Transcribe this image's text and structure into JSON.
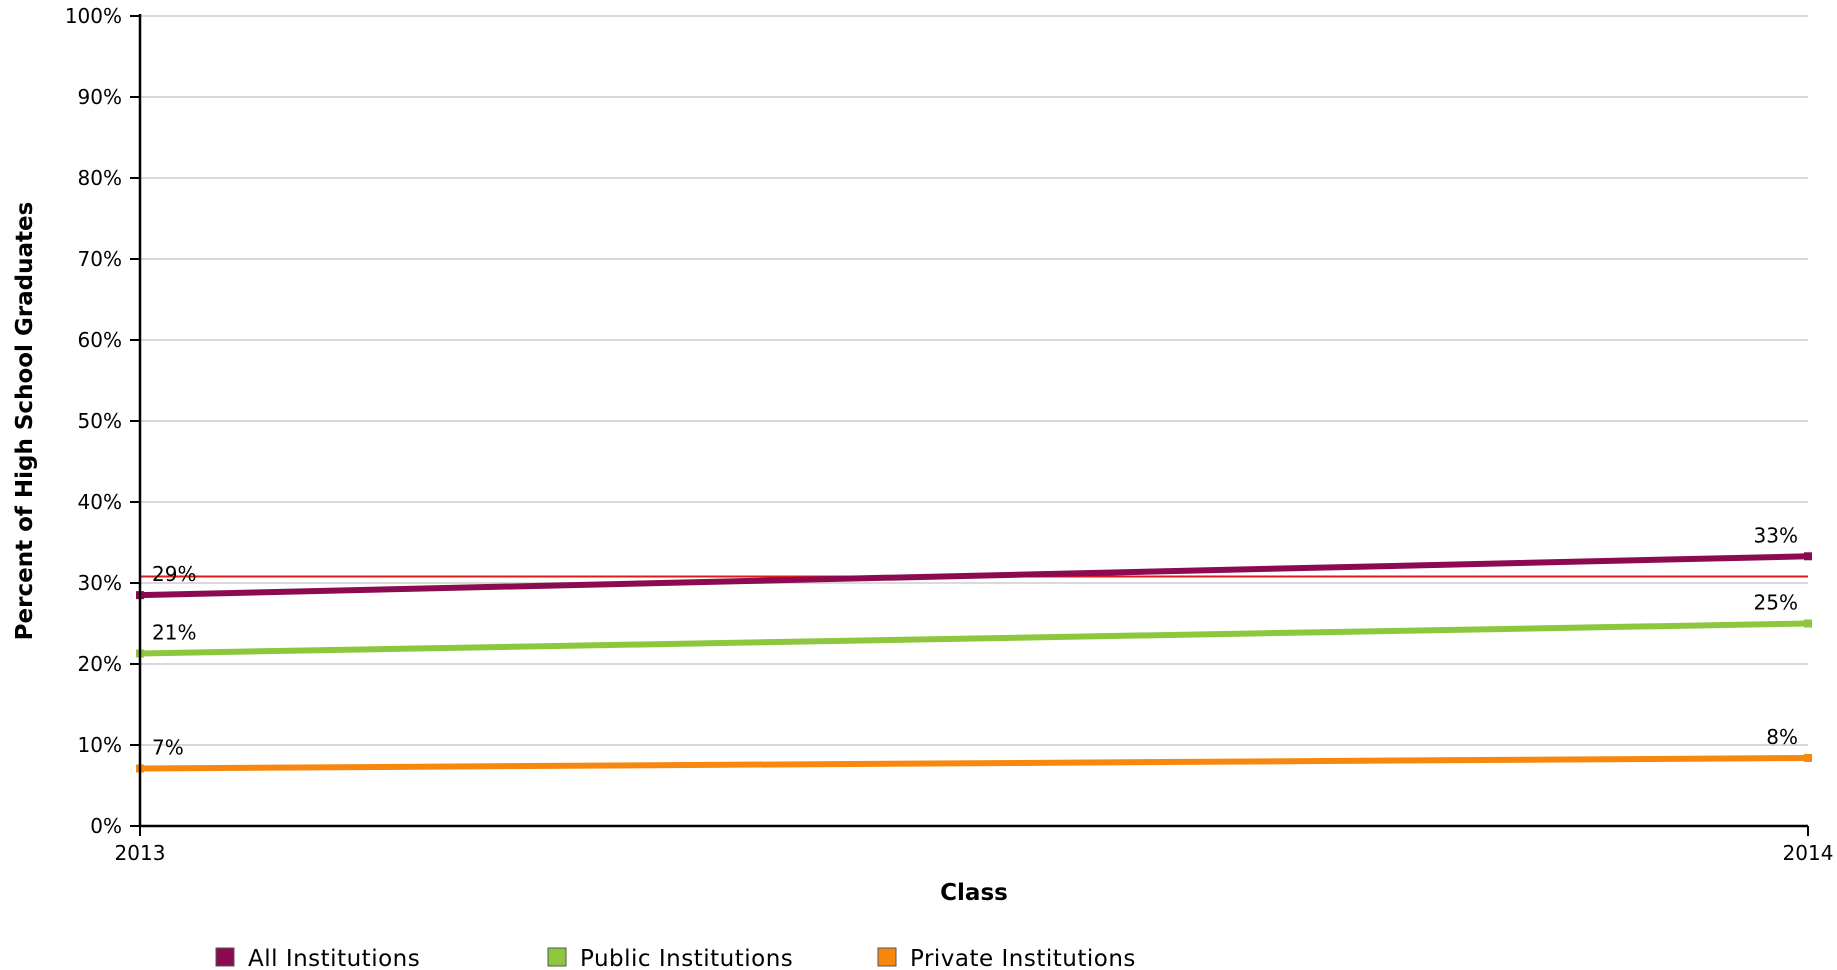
{
  "chart_data": {
    "type": "line",
    "x": [
      "2013",
      "2014"
    ],
    "xlabel": "Class",
    "ylabel": "Percent of High School Graduates",
    "ylim": [
      0,
      100
    ],
    "y_ticks": [
      "0%",
      "10%",
      "20%",
      "30%",
      "40%",
      "50%",
      "60%",
      "70%",
      "80%",
      "90%",
      "100%"
    ],
    "grid": true,
    "legend_position": "bottom",
    "reference_line": {
      "value": 30.8,
      "color": "#e31a1c"
    },
    "series": [
      {
        "name": "All Institutions",
        "color": "#8b0a50",
        "values": [
          28.5,
          33.3
        ],
        "labels": [
          "29%",
          "33%"
        ]
      },
      {
        "name": "Public Institutions",
        "color": "#8dc63f",
        "values": [
          21.3,
          25.0
        ],
        "labels": [
          "21%",
          "25%"
        ]
      },
      {
        "name": "Private Institutions",
        "color": "#f7870f",
        "values": [
          7.1,
          8.4
        ],
        "labels": [
          "7%",
          "8%"
        ]
      }
    ]
  }
}
